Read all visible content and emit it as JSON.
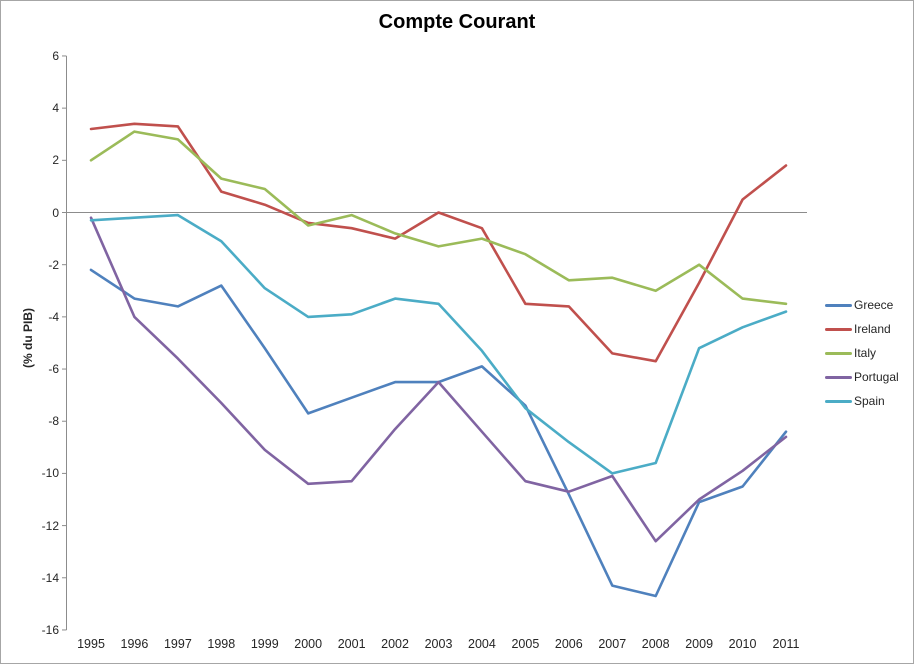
{
  "title": "Compte Courant",
  "y_axis_title": "(% du PIB)",
  "colors": {
    "axis": "#8c8c8c",
    "text": "#262626",
    "frame_border": "#a6a6a6",
    "greece": "#4f81bd",
    "ireland": "#c0504d",
    "italy": "#9bbb59",
    "portugal": "#8064a2",
    "spain": "#4bacc6"
  },
  "chart_data": {
    "type": "line",
    "title": "Compte Courant",
    "xlabel": "",
    "ylabel": "(% du PIB)",
    "ylim": [
      -16,
      6
    ],
    "yticks": [
      6,
      4,
      2,
      0,
      -2,
      -4,
      -6,
      -8,
      -10,
      -12,
      -14,
      -16
    ],
    "grid": "zero-line-only",
    "legend_position": "right",
    "x": [
      1995,
      1996,
      1997,
      1998,
      1999,
      2000,
      2001,
      2002,
      2003,
      2004,
      2005,
      2006,
      2007,
      2008,
      2009,
      2010,
      2011
    ],
    "series": [
      {
        "name": "Greece",
        "color": "#4f81bd",
        "values": [
          -2.2,
          -3.3,
          -3.6,
          -2.8,
          -5.2,
          -7.7,
          -7.1,
          -6.5,
          -6.5,
          -5.9,
          -7.4,
          -10.8,
          -14.3,
          -14.7,
          -11.1,
          -10.5,
          -8.4
        ]
      },
      {
        "name": "Ireland",
        "color": "#c0504d",
        "values": [
          3.2,
          3.4,
          3.3,
          0.8,
          0.3,
          -0.4,
          -0.6,
          -1.0,
          0.0,
          -0.6,
          -3.5,
          -3.6,
          -5.4,
          -5.7,
          -2.7,
          0.5,
          1.8
        ]
      },
      {
        "name": "Italy",
        "color": "#9bbb59",
        "values": [
          2.0,
          3.1,
          2.8,
          1.3,
          0.9,
          -0.5,
          -0.1,
          -0.8,
          -1.3,
          -1.0,
          -1.6,
          -2.6,
          -2.5,
          -3.0,
          -2.0,
          -3.3,
          -3.5
        ]
      },
      {
        "name": "Portugal",
        "color": "#8064a2",
        "values": [
          -0.2,
          -4.0,
          -5.6,
          -7.3,
          -9.1,
          -10.4,
          -10.3,
          -8.3,
          -6.5,
          -8.4,
          -10.3,
          -10.7,
          -10.1,
          -12.6,
          -11.0,
          -9.9,
          -8.6
        ]
      },
      {
        "name": "Spain",
        "color": "#4bacc6",
        "values": [
          -0.3,
          -0.2,
          -0.1,
          -1.1,
          -2.9,
          -4.0,
          -3.9,
          -3.3,
          -3.5,
          -5.3,
          -7.5,
          -8.8,
          -10.0,
          -9.6,
          -5.2,
          -4.4,
          -3.8
        ]
      }
    ]
  }
}
